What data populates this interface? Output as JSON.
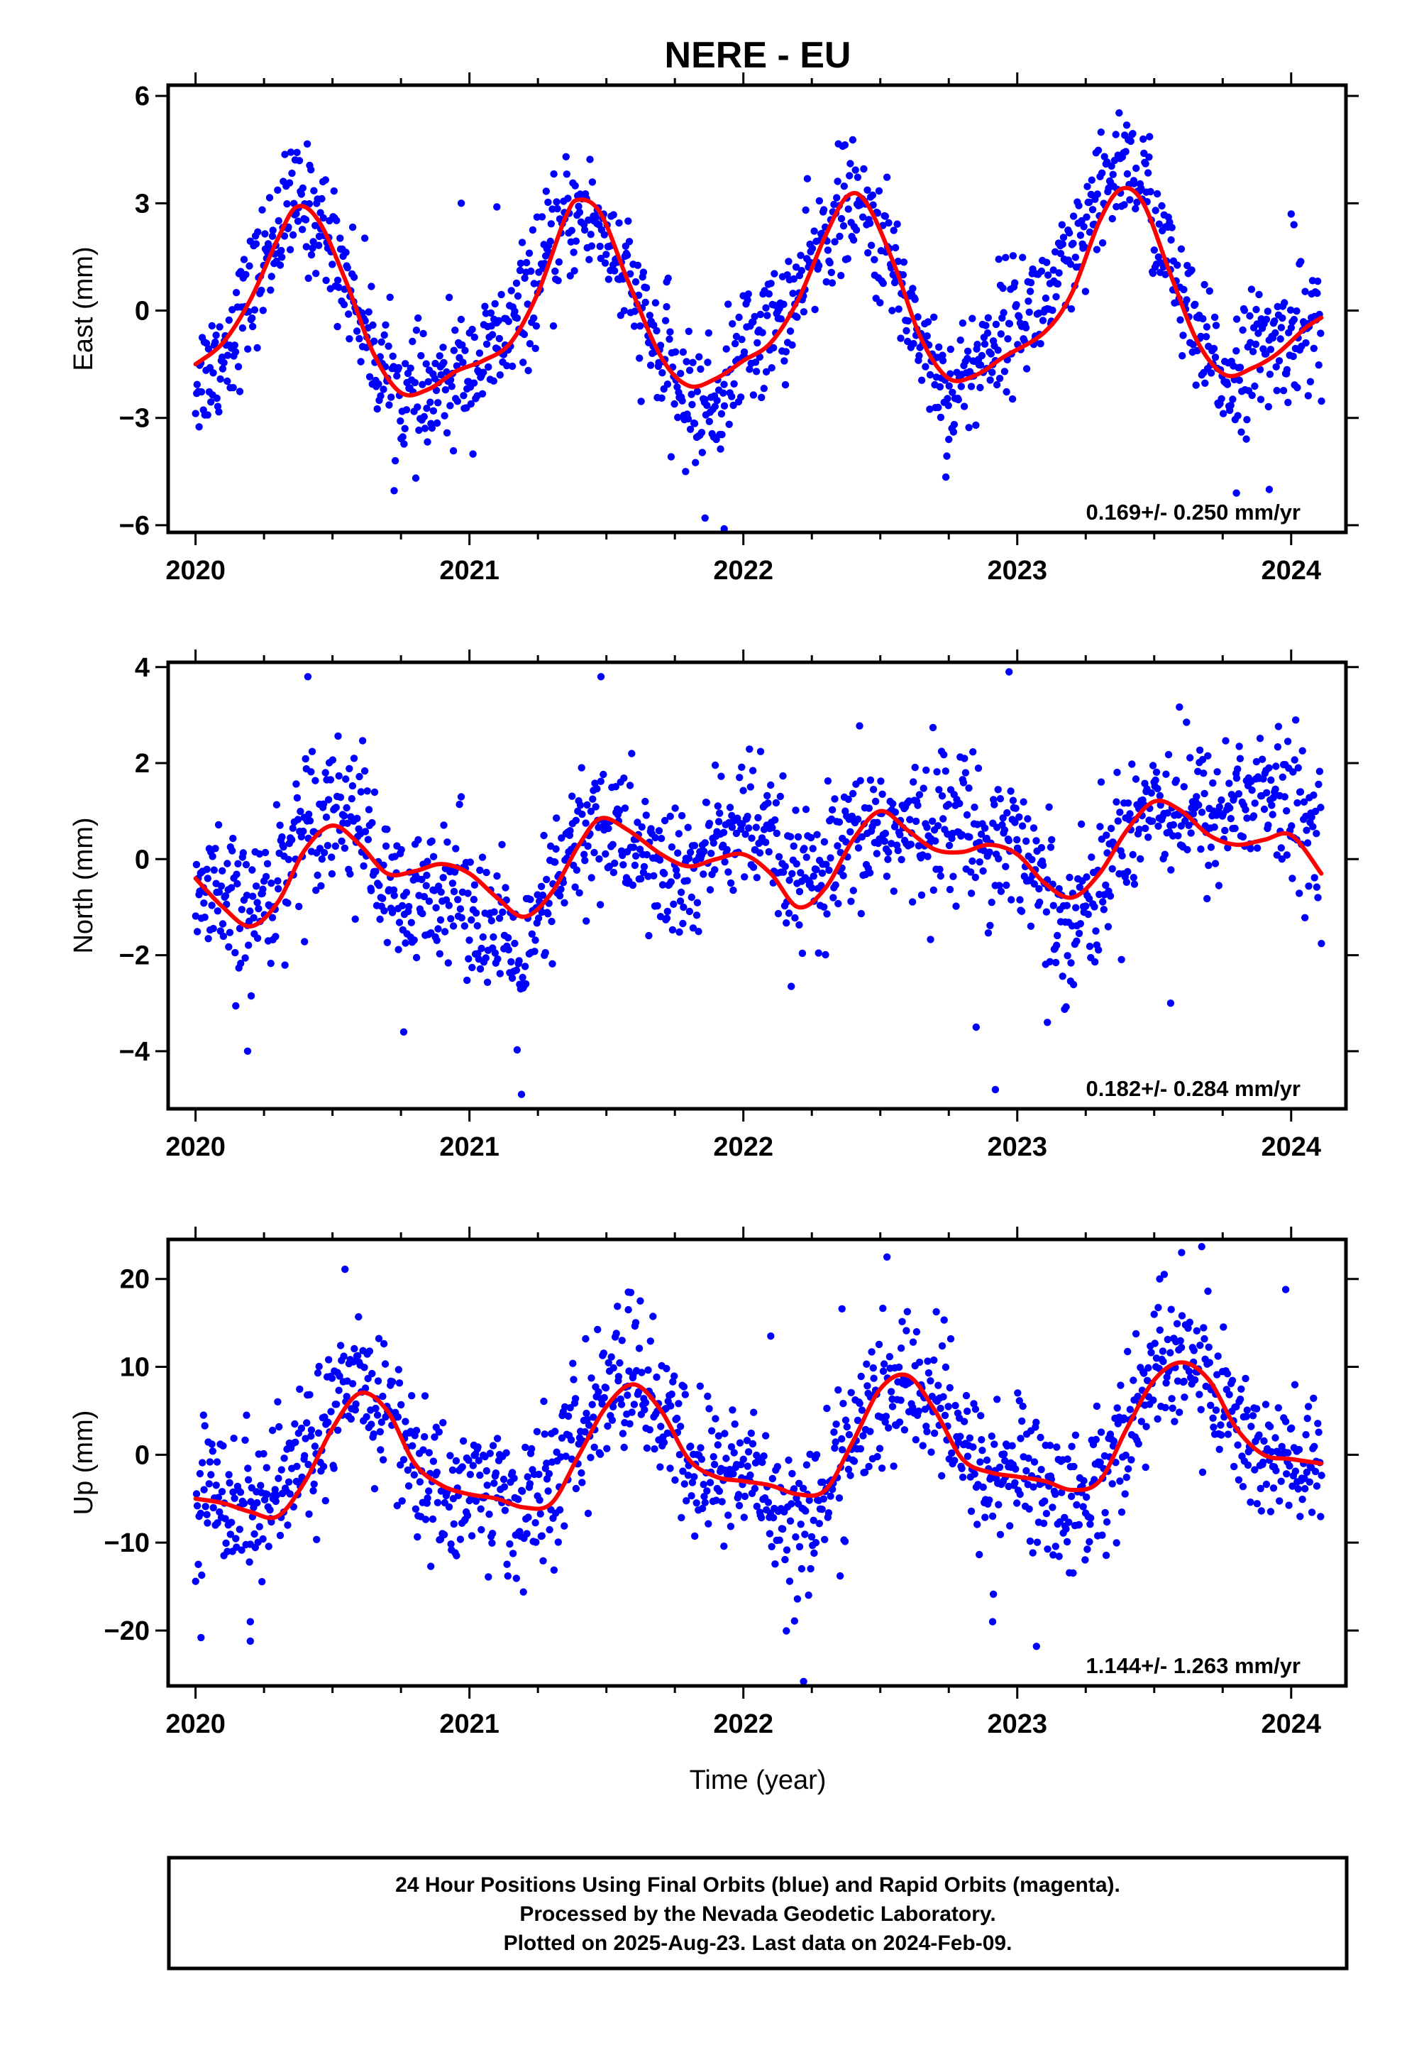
{
  "title": "NERE - EU",
  "xlabel": "Time (year)",
  "footer": {
    "line1": "24 Hour Positions Using Final Orbits (blue) and Rapid Orbits (magenta).",
    "line2": "Processed by the Nevada Geodetic Laboratory.",
    "line3": "Plotted on 2025-Aug-23. Last data on 2024-Feb-09."
  },
  "colors": {
    "points": "#0000ff",
    "model": "#ff0000",
    "frame": "#000000"
  },
  "chart_data": [
    {
      "type": "scatter",
      "ylabel": "East (mm)",
      "rate": "0.169+/- 0.250 mm/yr",
      "xlim": [
        2019.9,
        2024.2
      ],
      "ylim": [
        -6.2,
        6.3
      ],
      "yticks": [
        {
          "v": 6,
          "label": "6"
        },
        {
          "v": 3,
          "label": "3"
        },
        {
          "v": 0,
          "label": "0"
        },
        {
          "v": -3,
          "label": "−3"
        },
        {
          "v": -6,
          "label": "−6"
        }
      ],
      "xticks": [
        "2020",
        "2021",
        "2022",
        "2023",
        "2024"
      ],
      "model_curve": [
        [
          2020.0,
          -1.5
        ],
        [
          2020.1,
          -0.9
        ],
        [
          2020.2,
          0.3
        ],
        [
          2020.3,
          2.0
        ],
        [
          2020.37,
          2.9
        ],
        [
          2020.45,
          2.5
        ],
        [
          2020.55,
          0.8
        ],
        [
          2020.65,
          -1.2
        ],
        [
          2020.75,
          -2.3
        ],
        [
          2020.85,
          -2.2
        ],
        [
          2020.95,
          -1.7
        ],
        [
          2021.05,
          -1.4
        ],
        [
          2021.15,
          -0.9
        ],
        [
          2021.25,
          0.5
        ],
        [
          2021.35,
          2.6
        ],
        [
          2021.4,
          3.1
        ],
        [
          2021.48,
          2.7
        ],
        [
          2021.58,
          0.8
        ],
        [
          2021.7,
          -1.3
        ],
        [
          2021.8,
          -2.1
        ],
        [
          2021.9,
          -1.9
        ],
        [
          2022.0,
          -1.4
        ],
        [
          2022.1,
          -0.9
        ],
        [
          2022.2,
          0.3
        ],
        [
          2022.3,
          2.1
        ],
        [
          2022.38,
          3.2
        ],
        [
          2022.45,
          3.0
        ],
        [
          2022.55,
          1.3
        ],
        [
          2022.65,
          -0.8
        ],
        [
          2022.75,
          -1.9
        ],
        [
          2022.85,
          -1.8
        ],
        [
          2022.95,
          -1.3
        ],
        [
          2023.1,
          -0.6
        ],
        [
          2023.2,
          0.5
        ],
        [
          2023.3,
          2.5
        ],
        [
          2023.38,
          3.4
        ],
        [
          2023.46,
          3.0
        ],
        [
          2023.56,
          1.0
        ],
        [
          2023.66,
          -0.9
        ],
        [
          2023.76,
          -1.8
        ],
        [
          2023.86,
          -1.6
        ],
        [
          2023.95,
          -1.2
        ],
        [
          2024.05,
          -0.5
        ],
        [
          2024.11,
          -0.2
        ]
      ],
      "anchors": [
        [
          2020.0,
          -2.0
        ],
        [
          2020.1,
          -1.2
        ],
        [
          2020.2,
          0.4
        ],
        [
          2020.3,
          2.3
        ],
        [
          2020.37,
          3.0
        ],
        [
          2020.45,
          2.6
        ],
        [
          2020.55,
          1.0
        ],
        [
          2020.65,
          -1.1
        ],
        [
          2020.75,
          -2.4
        ],
        [
          2020.85,
          -2.6
        ],
        [
          2020.95,
          -1.8
        ],
        [
          2021.05,
          -1.4
        ],
        [
          2021.15,
          -0.6
        ],
        [
          2021.25,
          0.9
        ],
        [
          2021.35,
          2.4
        ],
        [
          2021.4,
          2.8
        ],
        [
          2021.48,
          2.4
        ],
        [
          2021.58,
          0.7
        ],
        [
          2021.7,
          -1.4
        ],
        [
          2021.8,
          -2.6
        ],
        [
          2021.9,
          -2.7
        ],
        [
          2022.0,
          -1.0
        ],
        [
          2022.1,
          -0.5
        ],
        [
          2022.2,
          0.4
        ],
        [
          2022.3,
          2.2
        ],
        [
          2022.38,
          3.0
        ],
        [
          2022.45,
          2.6
        ],
        [
          2022.55,
          1.2
        ],
        [
          2022.65,
          -0.8
        ],
        [
          2022.75,
          -2.4
        ],
        [
          2022.85,
          -1.5
        ],
        [
          2022.95,
          -0.4
        ],
        [
          2023.1,
          0.3
        ],
        [
          2023.2,
          1.2
        ],
        [
          2023.3,
          3.0
        ],
        [
          2023.38,
          4.3
        ],
        [
          2023.46,
          3.6
        ],
        [
          2023.56,
          1.2
        ],
        [
          2023.66,
          -1.0
        ],
        [
          2023.76,
          -1.9
        ],
        [
          2023.86,
          -1.2
        ],
        [
          2023.95,
          -1.0
        ],
        [
          2024.05,
          -0.4
        ],
        [
          2024.11,
          -0.5
        ]
      ],
      "scatter_sd": 0.85,
      "outliers": [
        [
          2020.97,
          3.0
        ],
        [
          2021.1,
          2.9
        ],
        [
          2021.72,
          0.8
        ],
        [
          2021.93,
          -6.1
        ],
        [
          2021.86,
          -5.8
        ],
        [
          2022.75,
          -3.6
        ],
        [
          2023.8,
          -5.1
        ],
        [
          2023.92,
          -5.0
        ],
        [
          2024.0,
          2.7
        ],
        [
          2024.01,
          2.4
        ]
      ]
    },
    {
      "type": "scatter",
      "ylabel": "North (mm)",
      "rate": "0.182+/- 0.284 mm/yr",
      "xlim": [
        2019.9,
        2024.2
      ],
      "ylim": [
        -5.2,
        4.1
      ],
      "yticks": [
        {
          "v": 4,
          "label": "4"
        },
        {
          "v": 2,
          "label": "2"
        },
        {
          "v": 0,
          "label": "0"
        },
        {
          "v": -2,
          "label": "−2"
        },
        {
          "v": -4,
          "label": "−4"
        }
      ],
      "xticks": [
        "2020",
        "2021",
        "2022",
        "2023",
        "2024"
      ],
      "model_curve": [
        [
          2020.0,
          -0.4
        ],
        [
          2020.1,
          -1.0
        ],
        [
          2020.2,
          -1.4
        ],
        [
          2020.3,
          -0.9
        ],
        [
          2020.4,
          0.2
        ],
        [
          2020.5,
          0.7
        ],
        [
          2020.6,
          0.3
        ],
        [
          2020.7,
          -0.3
        ],
        [
          2020.8,
          -0.25
        ],
        [
          2020.9,
          -0.1
        ],
        [
          2021.0,
          -0.3
        ],
        [
          2021.1,
          -0.8
        ],
        [
          2021.2,
          -1.2
        ],
        [
          2021.3,
          -0.7
        ],
        [
          2021.4,
          0.3
        ],
        [
          2021.48,
          0.85
        ],
        [
          2021.58,
          0.6
        ],
        [
          2021.7,
          0.1
        ],
        [
          2021.8,
          -0.15
        ],
        [
          2021.9,
          0.0
        ],
        [
          2022.0,
          0.1
        ],
        [
          2022.1,
          -0.3
        ],
        [
          2022.2,
          -1.0
        ],
        [
          2022.3,
          -0.6
        ],
        [
          2022.4,
          0.4
        ],
        [
          2022.5,
          1.0
        ],
        [
          2022.6,
          0.6
        ],
        [
          2022.7,
          0.2
        ],
        [
          2022.8,
          0.15
        ],
        [
          2022.9,
          0.3
        ],
        [
          2023.0,
          0.1
        ],
        [
          2023.1,
          -0.5
        ],
        [
          2023.2,
          -0.8
        ],
        [
          2023.3,
          -0.3
        ],
        [
          2023.4,
          0.6
        ],
        [
          2023.5,
          1.2
        ],
        [
          2023.6,
          1.0
        ],
        [
          2023.7,
          0.5
        ],
        [
          2023.8,
          0.3
        ],
        [
          2023.9,
          0.4
        ],
        [
          2024.0,
          0.5
        ],
        [
          2024.11,
          -0.3
        ]
      ],
      "anchors": [
        [
          2020.0,
          -0.8
        ],
        [
          2020.1,
          -1.0
        ],
        [
          2020.2,
          -1.2
        ],
        [
          2020.3,
          -0.4
        ],
        [
          2020.4,
          0.8
        ],
        [
          2020.5,
          1.2
        ],
        [
          2020.6,
          0.9
        ],
        [
          2020.7,
          -0.8
        ],
        [
          2020.8,
          -1.2
        ],
        [
          2020.9,
          -0.3
        ],
        [
          2021.0,
          -0.8
        ],
        [
          2021.1,
          -1.6
        ],
        [
          2021.2,
          -2.3
        ],
        [
          2021.3,
          -0.7
        ],
        [
          2021.4,
          0.4
        ],
        [
          2021.48,
          0.8
        ],
        [
          2021.58,
          0.4
        ],
        [
          2021.7,
          -0.3
        ],
        [
          2021.8,
          -0.5
        ],
        [
          2021.9,
          0.4
        ],
        [
          2022.0,
          0.8
        ],
        [
          2022.1,
          0.2
        ],
        [
          2022.2,
          -0.6
        ],
        [
          2022.3,
          -0.4
        ],
        [
          2022.4,
          0.3
        ],
        [
          2022.5,
          0.8
        ],
        [
          2022.6,
          0.4
        ],
        [
          2022.7,
          0.9
        ],
        [
          2022.8,
          0.8
        ],
        [
          2022.9,
          0.4
        ],
        [
          2023.0,
          0.5
        ],
        [
          2023.1,
          -0.7
        ],
        [
          2023.2,
          -1.3
        ],
        [
          2023.3,
          -0.6
        ],
        [
          2023.4,
          0.7
        ],
        [
          2023.5,
          1.3
        ],
        [
          2023.6,
          1.1
        ],
        [
          2023.7,
          0.9
        ],
        [
          2023.8,
          1.2
        ],
        [
          2023.9,
          1.4
        ],
        [
          2024.0,
          1.0
        ],
        [
          2024.11,
          0.5
        ]
      ],
      "scatter_sd": 0.75,
      "outliers": [
        [
          2020.19,
          -4.0
        ],
        [
          2020.41,
          3.8
        ],
        [
          2020.76,
          -3.6
        ],
        [
          2021.19,
          -4.9
        ],
        [
          2021.48,
          3.8
        ],
        [
          2022.92,
          -4.8
        ],
        [
          2022.97,
          3.9
        ],
        [
          2022.85,
          -3.5
        ],
        [
          2023.11,
          -3.4
        ],
        [
          2023.56,
          -3.0
        ]
      ]
    },
    {
      "type": "scatter",
      "ylabel": "Up (mm)",
      "rate": "1.144+/- 1.263 mm/yr",
      "xlim": [
        2019.9,
        2024.2
      ],
      "ylim": [
        -26.3,
        24.5
      ],
      "yticks": [
        {
          "v": 20,
          "label": "20"
        },
        {
          "v": 10,
          "label": "10"
        },
        {
          "v": 0,
          "label": "0"
        },
        {
          "v": -10,
          "label": "−10"
        },
        {
          "v": -20,
          "label": "−20"
        }
      ],
      "xticks": [
        "2020",
        "2021",
        "2022",
        "2023",
        "2024"
      ],
      "model_curve": [
        [
          2020.0,
          -5.0
        ],
        [
          2020.1,
          -5.5
        ],
        [
          2020.2,
          -6.5
        ],
        [
          2020.3,
          -7.0
        ],
        [
          2020.4,
          -3.0
        ],
        [
          2020.5,
          3.0
        ],
        [
          2020.6,
          7.0
        ],
        [
          2020.7,
          5.0
        ],
        [
          2020.8,
          -1.0
        ],
        [
          2020.9,
          -3.5
        ],
        [
          2021.0,
          -4.5
        ],
        [
          2021.1,
          -5.0
        ],
        [
          2021.2,
          -6.0
        ],
        [
          2021.3,
          -5.5
        ],
        [
          2021.4,
          0.0
        ],
        [
          2021.5,
          5.5
        ],
        [
          2021.6,
          8.0
        ],
        [
          2021.7,
          5.0
        ],
        [
          2021.8,
          -0.5
        ],
        [
          2021.9,
          -2.5
        ],
        [
          2022.0,
          -3.0
        ],
        [
          2022.1,
          -3.5
        ],
        [
          2022.2,
          -4.5
        ],
        [
          2022.3,
          -4.0
        ],
        [
          2022.4,
          1.5
        ],
        [
          2022.5,
          7.5
        ],
        [
          2022.6,
          9.0
        ],
        [
          2022.7,
          5.0
        ],
        [
          2022.8,
          -0.5
        ],
        [
          2022.9,
          -2.0
        ],
        [
          2023.0,
          -2.5
        ],
        [
          2023.1,
          -3.0
        ],
        [
          2023.2,
          -4.0
        ],
        [
          2023.3,
          -3.0
        ],
        [
          2023.4,
          3.0
        ],
        [
          2023.5,
          8.5
        ],
        [
          2023.6,
          10.5
        ],
        [
          2023.7,
          8.5
        ],
        [
          2023.8,
          3.0
        ],
        [
          2023.9,
          0.0
        ],
        [
          2024.0,
          -0.5
        ],
        [
          2024.11,
          -1.0
        ]
      ],
      "anchors": [
        [
          2020.0,
          -4.5
        ],
        [
          2020.1,
          -4.0
        ],
        [
          2020.2,
          -6.0
        ],
        [
          2020.3,
          -5.0
        ],
        [
          2020.4,
          0.0
        ],
        [
          2020.5,
          5.0
        ],
        [
          2020.6,
          7.5
        ],
        [
          2020.7,
          6.0
        ],
        [
          2020.8,
          -1.5
        ],
        [
          2020.9,
          -5.0
        ],
        [
          2021.0,
          -3.5
        ],
        [
          2021.1,
          -4.5
        ],
        [
          2021.2,
          -6.5
        ],
        [
          2021.3,
          -3.5
        ],
        [
          2021.4,
          2.0
        ],
        [
          2021.5,
          7.0
        ],
        [
          2021.6,
          9.5
        ],
        [
          2021.7,
          4.5
        ],
        [
          2021.8,
          -1.0
        ],
        [
          2021.9,
          -2.5
        ],
        [
          2022.0,
          -1.5
        ],
        [
          2022.1,
          -4.5
        ],
        [
          2022.2,
          -9.0
        ],
        [
          2022.3,
          -4.5
        ],
        [
          2022.4,
          2.0
        ],
        [
          2022.5,
          6.0
        ],
        [
          2022.6,
          8.5
        ],
        [
          2022.7,
          6.5
        ],
        [
          2022.8,
          0.5
        ],
        [
          2022.9,
          -3.0
        ],
        [
          2023.0,
          -1.0
        ],
        [
          2023.1,
          -4.0
        ],
        [
          2023.2,
          -6.0
        ],
        [
          2023.3,
          -3.0
        ],
        [
          2023.4,
          3.0
        ],
        [
          2023.5,
          9.0
        ],
        [
          2023.6,
          12.0
        ],
        [
          2023.7,
          9.0
        ],
        [
          2023.8,
          3.5
        ],
        [
          2023.9,
          -0.5
        ],
        [
          2024.0,
          -1.5
        ],
        [
          2024.11,
          -2.0
        ]
      ],
      "scatter_sd": 4.2,
      "outliers": [
        [
          2020.02,
          -20.8
        ],
        [
          2020.2,
          -21.2
        ],
        [
          2020.2,
          -19.0
        ],
        [
          2021.58,
          18.5
        ],
        [
          2021.58,
          16.5
        ],
        [
          2022.1,
          13.5
        ],
        [
          2022.22,
          -25.8
        ],
        [
          2022.36,
          16.6
        ],
        [
          2022.91,
          -19.0
        ],
        [
          2023.07,
          -21.8
        ],
        [
          2023.6,
          23.0
        ],
        [
          2023.52,
          20.0
        ],
        [
          2023.98,
          18.8
        ]
      ]
    }
  ]
}
